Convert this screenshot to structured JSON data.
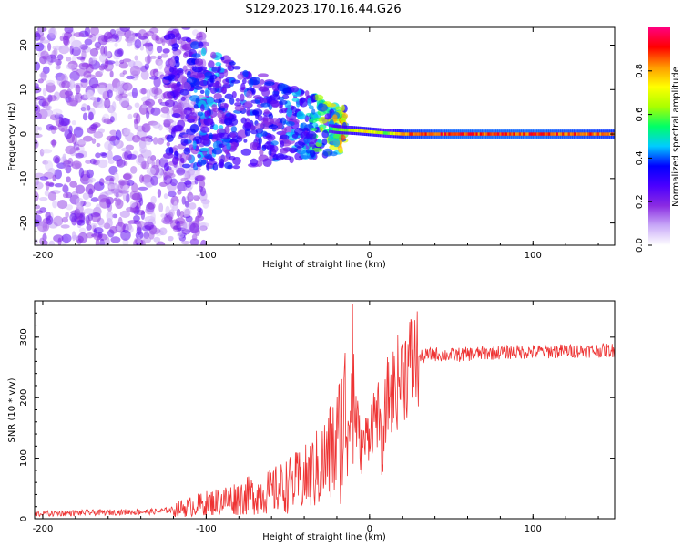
{
  "figure": {
    "title": "S129.2023.170.16.44.G26"
  },
  "chart_data": [
    {
      "type": "heatmap",
      "xlabel": "Height of straight line (km)",
      "ylabel": "Frequency (Hz)",
      "xlim": [
        -205,
        150
      ],
      "ylim": [
        -25,
        24
      ],
      "x_ticks": [
        -200,
        -100,
        0,
        100
      ],
      "y_ticks": [
        -20,
        -10,
        0,
        10,
        20
      ],
      "colorbar": {
        "label": "Normalized spectral amplitude",
        "range": [
          0,
          1
        ],
        "ticks": [
          0.0,
          0.2,
          0.4,
          0.6,
          0.8
        ],
        "colormap": [
          "#ffffff",
          "#c8a8f8",
          "#8a2be2",
          "#4b00ff",
          "#0000ff",
          "#00ccff",
          "#00ff66",
          "#aaff00",
          "#ffff00",
          "#ff9900",
          "#ff0000",
          "#ff0080"
        ]
      },
      "ridge": {
        "description_free": true,
        "x": [
          -120,
          -100,
          -80,
          -60,
          -40,
          -20,
          -10,
          0,
          10,
          20,
          50,
          100,
          150
        ],
        "frequency": [
          8,
          6,
          4,
          3,
          2,
          1,
          0.8,
          0.5,
          0.2,
          0,
          0,
          0,
          0
        ],
        "amplitude": [
          0.25,
          0.35,
          0.3,
          0.3,
          0.35,
          0.6,
          0.7,
          0.75,
          0.6,
          0.85,
          0.9,
          0.9,
          0.85
        ]
      },
      "noise_region": {
        "x_range": [
          -205,
          -120
        ],
        "frequency_range": [
          -25,
          24
        ],
        "amplitude": 0.15
      }
    },
    {
      "type": "line",
      "xlabel": "Height of straight line (km)",
      "ylabel": "SNR (10 * v/v)",
      "xlim": [
        -205,
        150
      ],
      "ylim": [
        0,
        360
      ],
      "x_ticks": [
        -200,
        -100,
        0,
        100
      ],
      "y_ticks": [
        0,
        100,
        200,
        300
      ],
      "color": "#ee3333",
      "series": [
        {
          "x": [
            -205,
            -190,
            -170,
            -150,
            -130,
            -120,
            -110,
            -100,
            -90,
            -80,
            -70,
            -60,
            -50,
            -40,
            -30,
            -20,
            -15,
            -10,
            -5,
            0,
            5,
            8,
            10,
            15,
            20,
            25,
            30,
            35,
            40,
            50,
            60,
            80,
            100,
            120,
            140,
            150
          ],
          "values": [
            8,
            9,
            10,
            11,
            12,
            15,
            20,
            25,
            30,
            35,
            40,
            45,
            55,
            65,
            85,
            120,
            170,
            200,
            110,
            150,
            180,
            90,
            195,
            215,
            240,
            255,
            265,
            270,
            272,
            270,
            272,
            275,
            276,
            277,
            278,
            278
          ]
        }
      ]
    }
  ]
}
